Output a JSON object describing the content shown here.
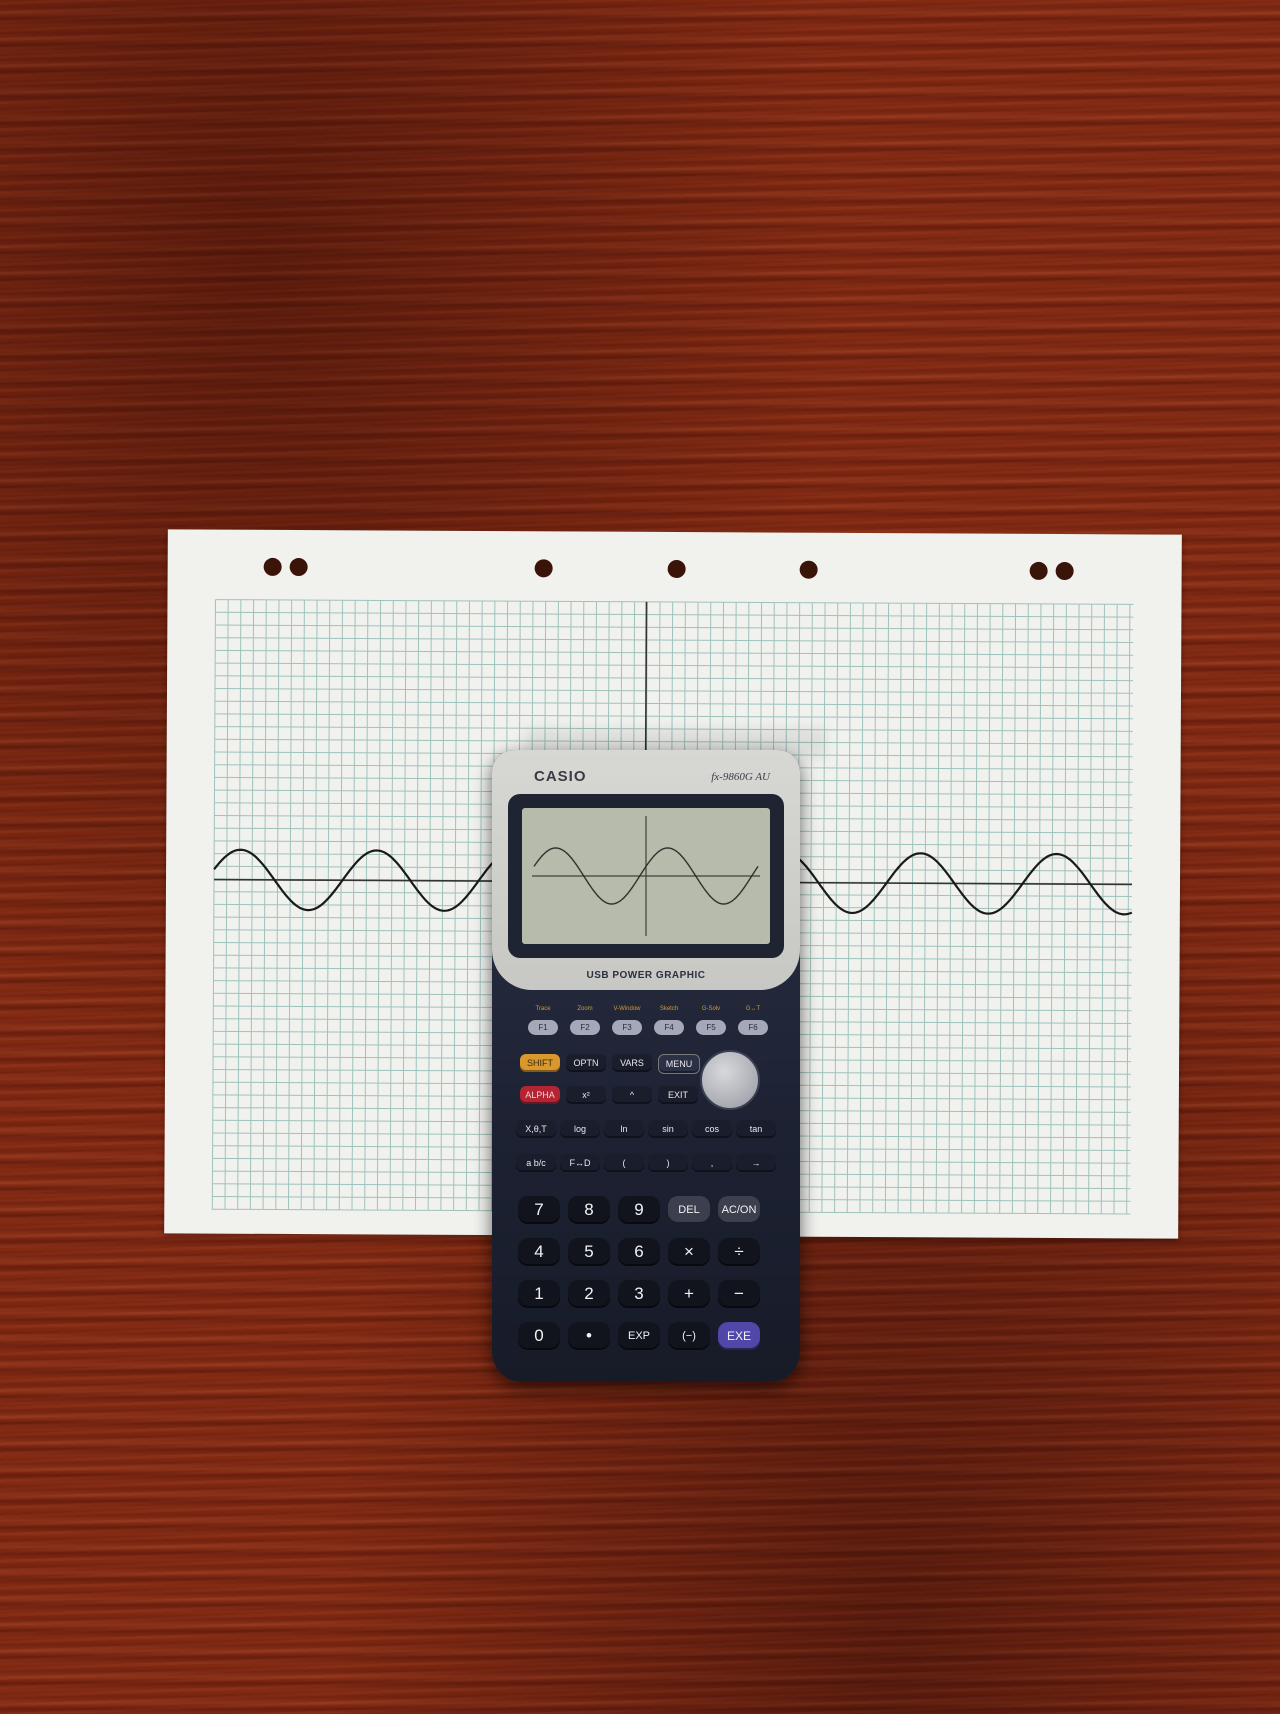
{
  "calculator": {
    "brand": "CASIO",
    "model": "fx-9860G AU",
    "usb_label": "USB POWER GRAPHIC",
    "f_keys": [
      "F1",
      "F2",
      "F3",
      "F4",
      "F5",
      "F6"
    ],
    "f_key_captions": [
      "Trace",
      "Zoom",
      "V-Window",
      "Sketch",
      "G-Solv",
      "G↔T"
    ],
    "row1": [
      "SHIFT",
      "OPTN",
      "VARS",
      "MENU"
    ],
    "row2": [
      "ALPHA",
      "x²",
      "^",
      "EXIT"
    ],
    "row3": [
      "X,θ,T",
      "log",
      "ln",
      "sin",
      "cos",
      "tan"
    ],
    "row4": [
      "a b/c",
      "F↔D",
      "(",
      ")",
      ",",
      "→"
    ],
    "num_rows": [
      [
        "7",
        "8",
        "9",
        "DEL",
        "AC/ON"
      ],
      [
        "4",
        "5",
        "6",
        "×",
        "÷"
      ],
      [
        "1",
        "2",
        "3",
        "+",
        "−"
      ],
      [
        "0",
        "•",
        "EXP",
        "(−)",
        "EXE"
      ]
    ]
  },
  "colors": {
    "table": "#7d2812",
    "paper": "#f1f1ee",
    "grid_line": "#9fc2bd",
    "pen": "#1a1a1a",
    "lcd": "#b7bbab"
  },
  "icons": [
    "hole-punch",
    "calculator",
    "sine-wave"
  ]
}
